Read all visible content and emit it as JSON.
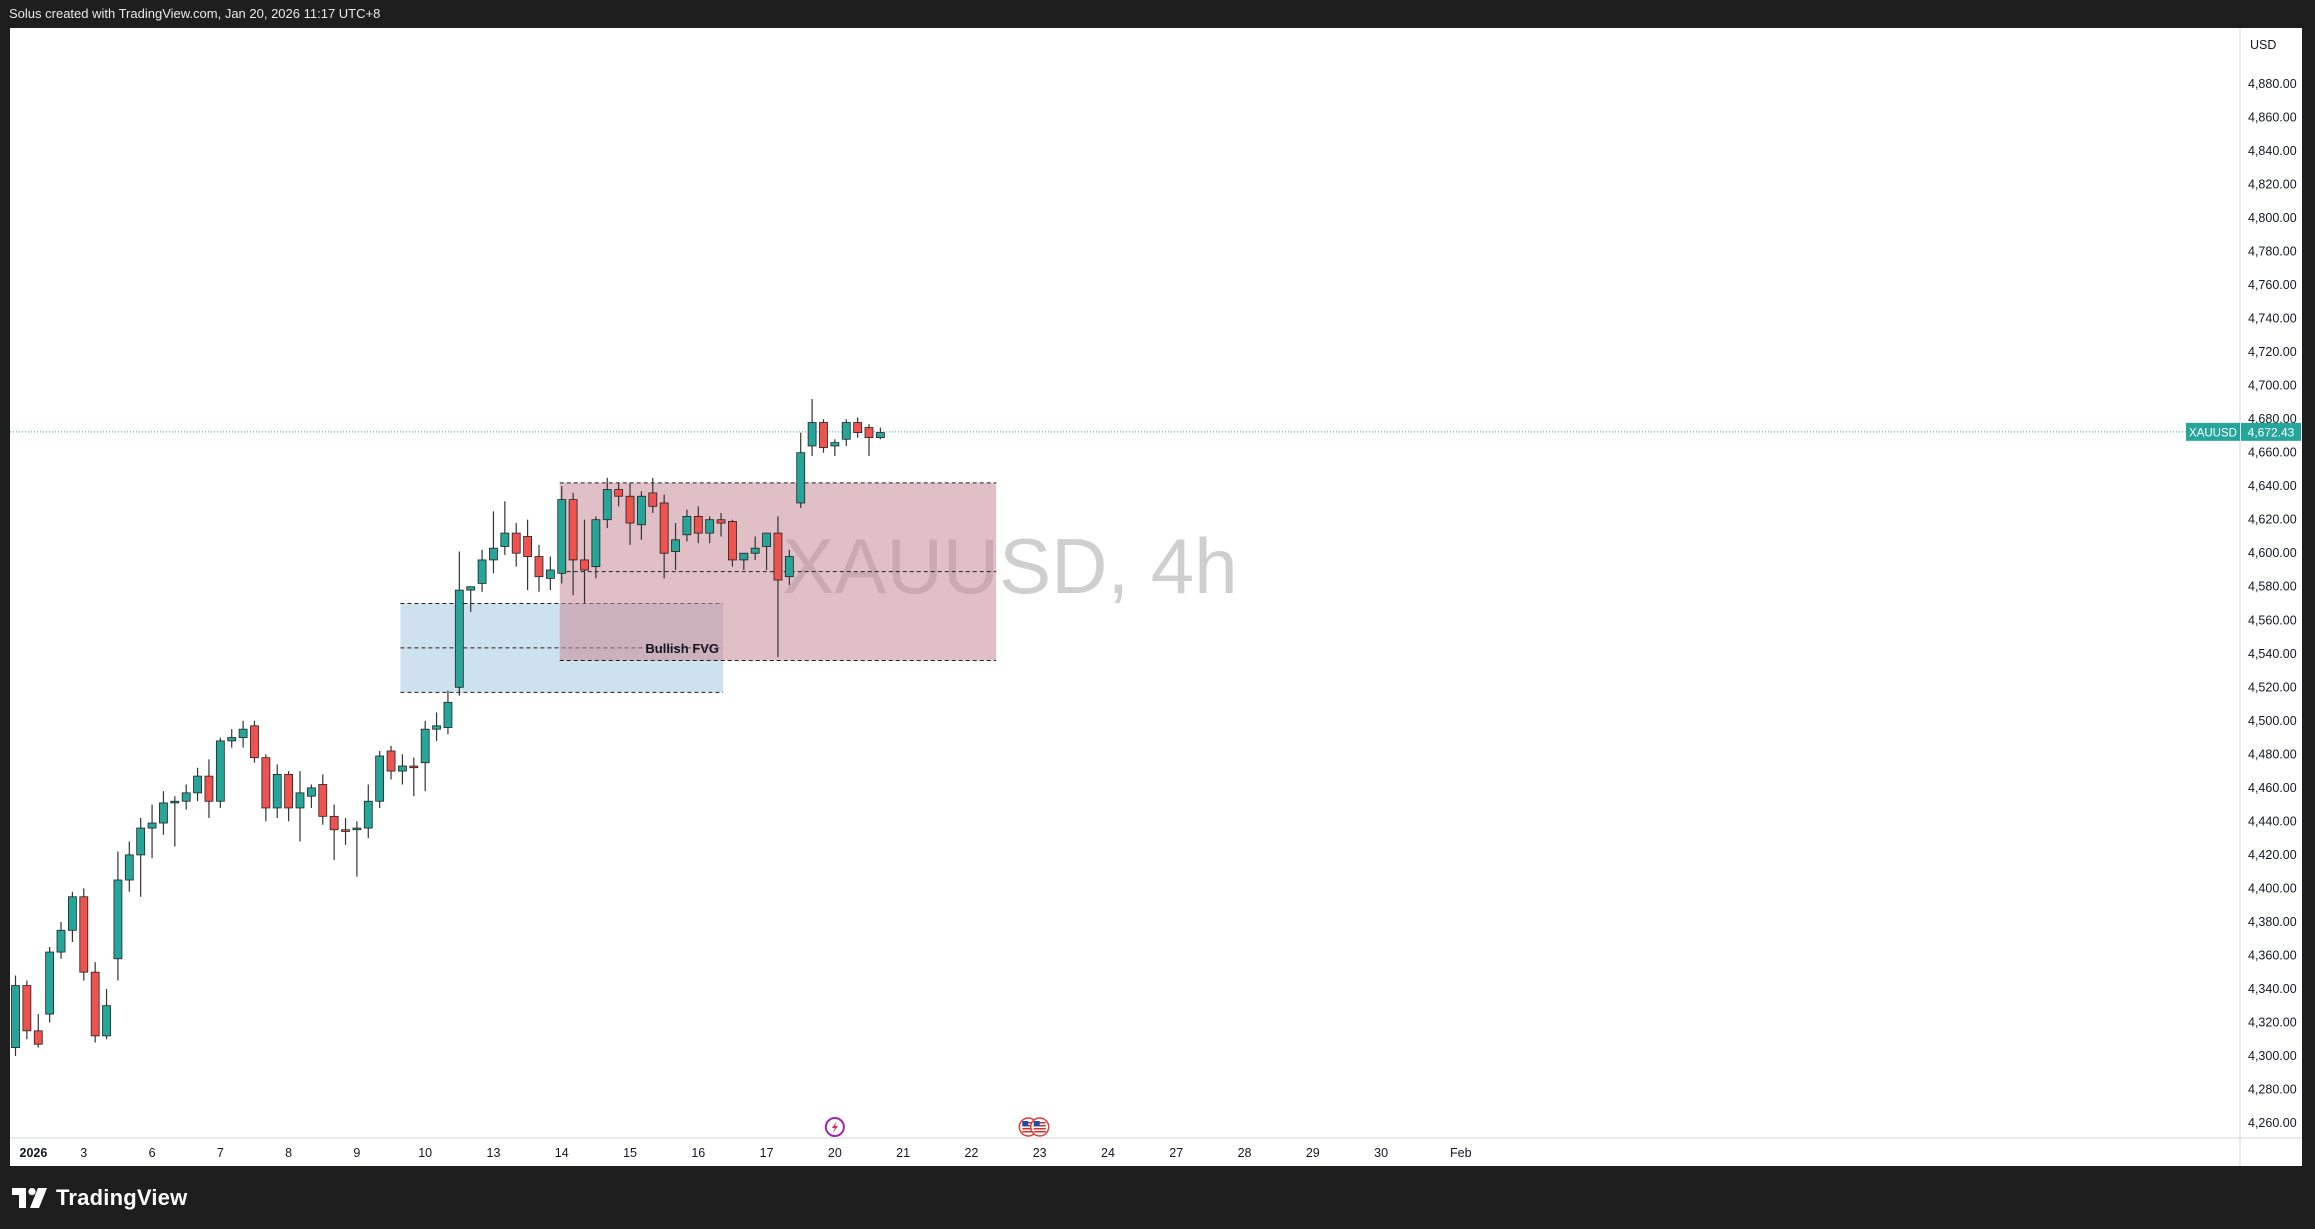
{
  "header": {
    "attribution": "Solus created with TradingView.com, Jan 20, 2026 11:17 UTC+8"
  },
  "footer": {
    "brand": "TradingView"
  },
  "colors": {
    "up": "#26a69a",
    "down": "#ef5350",
    "wick": "#333333",
    "fvg_bull": "#a6c8e0",
    "zone_red": "#c98b97",
    "price_line": "#26a69a"
  },
  "chart_data": {
    "type": "candlestick",
    "symbol": "XAUUSD",
    "interval": "4h",
    "watermark": "XAUUSD, 4h",
    "currency": "USD",
    "last_price": {
      "label": "XAUUSD",
      "value": 4672.43,
      "value_text": "4,672.43"
    },
    "y_axis": {
      "ylim": [
        4245,
        4922
      ],
      "ticks": [
        4260,
        4280,
        4300,
        4320,
        4340,
        4360,
        4380,
        4400,
        4420,
        4440,
        4460,
        4480,
        4500,
        4520,
        4540,
        4560,
        4580,
        4600,
        4620,
        4640,
        4660,
        4680,
        4700,
        4720,
        4740,
        4760,
        4780,
        4800,
        4820,
        4840,
        4860,
        4880
      ],
      "tick_labels": [
        "4,260.00",
        "4,280.00",
        "4,300.00",
        "4,320.00",
        "4,340.00",
        "4,360.00",
        "4,380.00",
        "4,400.00",
        "4,420.00",
        "4,440.00",
        "4,460.00",
        "4,480.00",
        "4,500.00",
        "4,520.00",
        "4,540.00",
        "4,560.00",
        "4,580.00",
        "4,600.00",
        "4,620.00",
        "4,640.00",
        "4,660.00",
        "4,680.00",
        "4,700.00",
        "4,720.00",
        "4,740.00",
        "4,760.00",
        "4,780.00",
        "4,800.00",
        "4,820.00",
        "4,840.00",
        "4,860.00",
        "4,880.00"
      ]
    },
    "x_axis": {
      "bar_range": [
        -1,
        130
      ],
      "labels": [
        {
          "text": "2026",
          "bar": 0,
          "bold": true
        },
        {
          "text": "3",
          "bar": 6
        },
        {
          "text": "6",
          "bar": 12
        },
        {
          "text": "7",
          "bar": 18
        },
        {
          "text": "8",
          "bar": 24
        },
        {
          "text": "9",
          "bar": 30
        },
        {
          "text": "10",
          "bar": 36
        },
        {
          "text": "13",
          "bar": 42
        },
        {
          "text": "14",
          "bar": 48
        },
        {
          "text": "15",
          "bar": 54
        },
        {
          "text": "16",
          "bar": 60
        },
        {
          "text": "17",
          "bar": 66
        },
        {
          "text": "20",
          "bar": 72
        },
        {
          "text": "21",
          "bar": 78
        },
        {
          "text": "22",
          "bar": 84
        },
        {
          "text": "23",
          "bar": 90
        },
        {
          "text": "24",
          "bar": 96
        },
        {
          "text": "27",
          "bar": 102
        },
        {
          "text": "28",
          "bar": 108
        },
        {
          "text": "29",
          "bar": 114
        },
        {
          "text": "30",
          "bar": 120
        },
        {
          "text": "Feb",
          "bar": 127
        }
      ]
    },
    "candles": [
      {
        "o": 4305,
        "h": 4348,
        "l": 4300,
        "c": 4342
      },
      {
        "o": 4342,
        "h": 4345,
        "l": 4310,
        "c": 4315
      },
      {
        "o": 4315,
        "h": 4325,
        "l": 4305,
        "c": 4307
      },
      {
        "o": 4325,
        "h": 4365,
        "l": 4320,
        "c": 4362
      },
      {
        "o": 4362,
        "h": 4380,
        "l": 4358,
        "c": 4375
      },
      {
        "o": 4375,
        "h": 4398,
        "l": 4368,
        "c": 4395
      },
      {
        "o": 4395,
        "h": 4400,
        "l": 4345,
        "c": 4350
      },
      {
        "o": 4350,
        "h": 4356,
        "l": 4308,
        "c": 4312
      },
      {
        "o": 4312,
        "h": 4340,
        "l": 4310,
        "c": 4330
      },
      {
        "o": 4358,
        "h": 4422,
        "l": 4345,
        "c": 4405
      },
      {
        "o": 4405,
        "h": 4428,
        "l": 4398,
        "c": 4420
      },
      {
        "o": 4420,
        "h": 4442,
        "l": 4395,
        "c": 4436
      },
      {
        "o": 4436,
        "h": 4450,
        "l": 4418,
        "c": 4439
      },
      {
        "o": 4439,
        "h": 4458,
        "l": 4432,
        "c": 4451
      },
      {
        "o": 4451,
        "h": 4455,
        "l": 4425,
        "c": 4452
      },
      {
        "o": 4452,
        "h": 4462,
        "l": 4447,
        "c": 4457
      },
      {
        "o": 4457,
        "h": 4472,
        "l": 4452,
        "c": 4467
      },
      {
        "o": 4467,
        "h": 4477,
        "l": 4442,
        "c": 4452
      },
      {
        "o": 4452,
        "h": 4490,
        "l": 4448,
        "c": 4488
      },
      {
        "o": 4488,
        "h": 4495,
        "l": 4484,
        "c": 4490
      },
      {
        "o": 4490,
        "h": 4500,
        "l": 4484,
        "c": 4495
      },
      {
        "o": 4497,
        "h": 4500,
        "l": 4475,
        "c": 4478
      },
      {
        "o": 4478,
        "h": 4480,
        "l": 4440,
        "c": 4448
      },
      {
        "o": 4448,
        "h": 4474,
        "l": 4442,
        "c": 4468
      },
      {
        "o": 4468,
        "h": 4470,
        "l": 4440,
        "c": 4448
      },
      {
        "o": 4448,
        "h": 4470,
        "l": 4428,
        "c": 4457
      },
      {
        "o": 4455,
        "h": 4462,
        "l": 4448,
        "c": 4460
      },
      {
        "o": 4462,
        "h": 4468,
        "l": 4438,
        "c": 4443
      },
      {
        "o": 4443,
        "h": 4450,
        "l": 4417,
        "c": 4435
      },
      {
        "o": 4435,
        "h": 4442,
        "l": 4426,
        "c": 4434
      },
      {
        "o": 4435,
        "h": 4440,
        "l": 4407,
        "c": 4436
      },
      {
        "o": 4436,
        "h": 4462,
        "l": 4430,
        "c": 4452
      },
      {
        "o": 4452,
        "h": 4482,
        "l": 4448,
        "c": 4479
      },
      {
        "o": 4482,
        "h": 4485,
        "l": 4465,
        "c": 4470
      },
      {
        "o": 4470,
        "h": 4480,
        "l": 4462,
        "c": 4473
      },
      {
        "o": 4473,
        "h": 4478,
        "l": 4455,
        "c": 4472
      },
      {
        "o": 4475,
        "h": 4500,
        "l": 4458,
        "c": 4495
      },
      {
        "o": 4495,
        "h": 4505,
        "l": 4488,
        "c": 4497
      },
      {
        "o": 4496,
        "h": 4518,
        "l": 4492,
        "c": 4511
      },
      {
        "o": 4520,
        "h": 4601,
        "l": 4515,
        "c": 4578
      },
      {
        "o": 4578,
        "h": 4580,
        "l": 4565,
        "c": 4580
      },
      {
        "o": 4582,
        "h": 4602,
        "l": 4577,
        "c": 4596
      },
      {
        "o": 4596,
        "h": 4625,
        "l": 4588,
        "c": 4603
      },
      {
        "o": 4604,
        "h": 4631,
        "l": 4599,
        "c": 4612
      },
      {
        "o": 4612,
        "h": 4618,
        "l": 4592,
        "c": 4600
      },
      {
        "o": 4610,
        "h": 4620,
        "l": 4578,
        "c": 4598
      },
      {
        "o": 4598,
        "h": 4605,
        "l": 4577,
        "c": 4586
      },
      {
        "o": 4585,
        "h": 4598,
        "l": 4578,
        "c": 4590
      },
      {
        "o": 4588,
        "h": 4640,
        "l": 4582,
        "c": 4632
      },
      {
        "o": 4632,
        "h": 4636,
        "l": 4575,
        "c": 4596
      },
      {
        "o": 4596,
        "h": 4620,
        "l": 4570,
        "c": 4590
      },
      {
        "o": 4592,
        "h": 4622,
        "l": 4585,
        "c": 4620
      },
      {
        "o": 4620,
        "h": 4645,
        "l": 4615,
        "c": 4638
      },
      {
        "o": 4638,
        "h": 4642,
        "l": 4628,
        "c": 4634
      },
      {
        "o": 4634,
        "h": 4642,
        "l": 4605,
        "c": 4618
      },
      {
        "o": 4617,
        "h": 4637,
        "l": 4608,
        "c": 4634
      },
      {
        "o": 4636,
        "h": 4645,
        "l": 4624,
        "c": 4628
      },
      {
        "o": 4630,
        "h": 4635,
        "l": 4585,
        "c": 4600
      },
      {
        "o": 4601,
        "h": 4618,
        "l": 4590,
        "c": 4608
      },
      {
        "o": 4611,
        "h": 4626,
        "l": 4607,
        "c": 4622
      },
      {
        "o": 4622,
        "h": 4628,
        "l": 4606,
        "c": 4612
      },
      {
        "o": 4612,
        "h": 4622,
        "l": 4606,
        "c": 4620
      },
      {
        "o": 4620,
        "h": 4624,
        "l": 4610,
        "c": 4618
      },
      {
        "o": 4619,
        "h": 4620,
        "l": 4592,
        "c": 4596
      },
      {
        "o": 4596,
        "h": 4600,
        "l": 4590,
        "c": 4600
      },
      {
        "o": 4600,
        "h": 4610,
        "l": 4596,
        "c": 4603
      },
      {
        "o": 4604,
        "h": 4612,
        "l": 4590,
        "c": 4612
      },
      {
        "o": 4612,
        "h": 4622,
        "l": 4538,
        "c": 4584
      },
      {
        "o": 4586,
        "h": 4602,
        "l": 4581,
        "c": 4598
      },
      {
        "o": 4630,
        "h": 4672,
        "l": 4627,
        "c": 4660
      },
      {
        "o": 4664,
        "h": 4692,
        "l": 4658,
        "c": 4678
      },
      {
        "o": 4678,
        "h": 4680,
        "l": 4660,
        "c": 4663
      },
      {
        "o": 4664,
        "h": 4668,
        "l": 4658,
        "c": 4666
      },
      {
        "o": 4668,
        "h": 4680,
        "l": 4664,
        "c": 4678
      },
      {
        "o": 4678,
        "h": 4681,
        "l": 4669,
        "c": 4672
      },
      {
        "o": 4675,
        "h": 4677,
        "l": 4658,
        "c": 4669
      },
      {
        "o": 4669,
        "h": 4675,
        "l": 4668,
        "c": 4672
      }
    ],
    "zones": [
      {
        "name": "bullish-fvg",
        "label": "Bullish FVG",
        "bar_start": 34,
        "bar_end": 62,
        "top": 4570,
        "bottom": 4517
      },
      {
        "name": "bearish-zone",
        "label": "",
        "bar_start": 48,
        "bar_end": 86,
        "top": 4642,
        "bottom": 4536
      }
    ],
    "event_markers": [
      {
        "name": "flash-event-marker",
        "bar": 72
      },
      {
        "name": "us-flag-marker",
        "bar": 89
      },
      {
        "name": "us-flag-marker",
        "bar": 90
      }
    ]
  }
}
